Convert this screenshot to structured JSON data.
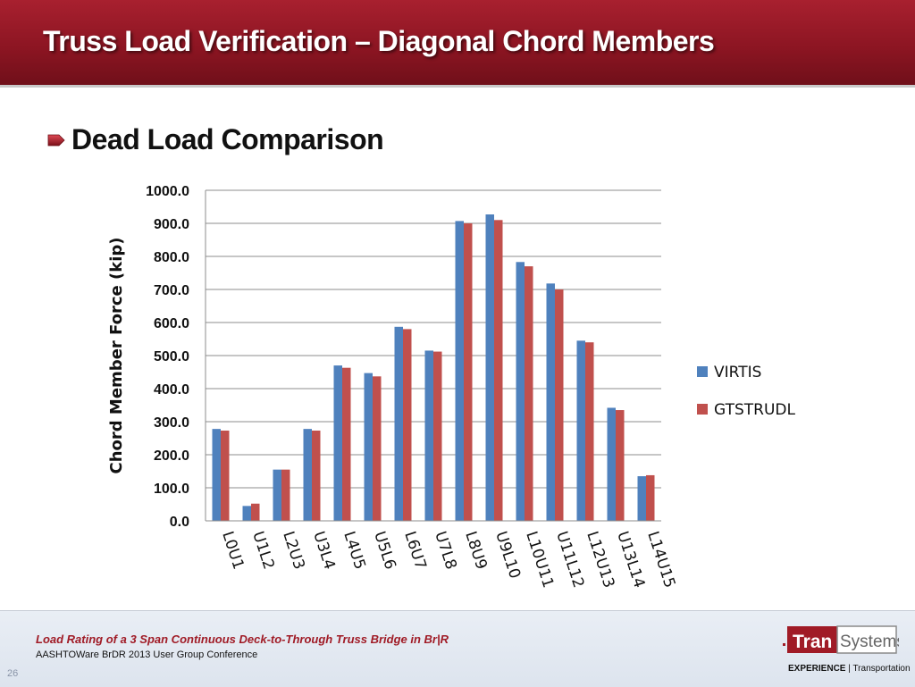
{
  "slide": {
    "title": "Truss Load Verification – Diagonal Chord Members",
    "bullet": "Dead Load Comparison",
    "page_number": "26"
  },
  "footer": {
    "title": "Load Rating of a 3 Span Continuous Deck-to-Through Truss Bridge in Br|R",
    "subtitle": "AASHTOWare BrDR 2013 User Group Conference",
    "logo_text_a": "Tran",
    "logo_text_b": "Systems",
    "tagline_bold": "EXPERIENCE",
    "tagline_rest": " | Transportation"
  },
  "colors": {
    "header": "#8c1522",
    "virtis": "#4f81bd",
    "gtstrudl": "#c0504d",
    "footer_title": "#a01b26"
  },
  "chart_data": {
    "type": "bar",
    "title": "",
    "xlabel": "",
    "ylabel": "Chord Member Force (kip)",
    "ylim": [
      0,
      1000
    ],
    "yticks": [
      "0.0",
      "100.0",
      "200.0",
      "300.0",
      "400.0",
      "500.0",
      "600.0",
      "700.0",
      "800.0",
      "900.0",
      "1000.0"
    ],
    "grid": true,
    "legend_position": "right",
    "categories": [
      "L0U1",
      "U1L2",
      "L2U3",
      "U3L4",
      "L4U5",
      "U5L6",
      "L6U7",
      "U7L8",
      "L8U9",
      "U9L10",
      "L10U11",
      "U11L12",
      "L12U13",
      "U13L14",
      "L14U15"
    ],
    "series": [
      {
        "name": "VIRTIS",
        "color": "#4f81bd",
        "values": [
          278,
          45,
          155,
          278,
          470,
          447,
          587,
          515,
          907,
          927,
          783,
          718,
          545,
          342,
          135
        ]
      },
      {
        "name": "GTSTRUDL",
        "color": "#c0504d",
        "values": [
          273,
          52,
          155,
          273,
          463,
          437,
          580,
          512,
          900,
          910,
          770,
          700,
          540,
          335,
          138
        ]
      }
    ]
  }
}
